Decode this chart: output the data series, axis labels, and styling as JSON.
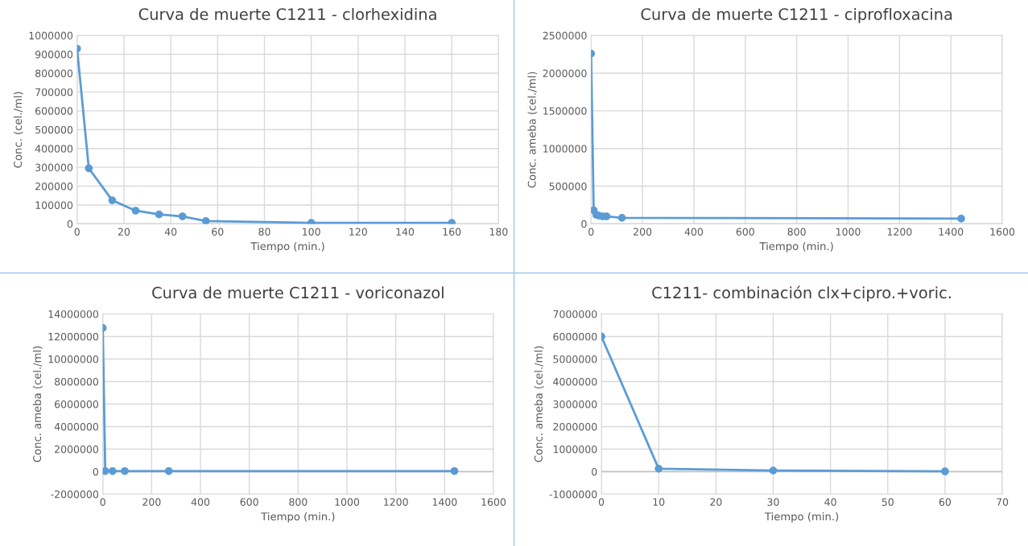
{
  "chart_data": [
    {
      "type": "line",
      "title": "Curva de muerte C1211 - clorhexidina",
      "xlabel": "Tiempo (min.)",
      "ylabel": "Conc. (cel./ml)",
      "marker": "circle",
      "line_style": "solid",
      "grid": true,
      "series": [
        {
          "color": "#5b9bd5",
          "x": [
            0,
            5,
            15,
            25,
            35,
            45,
            55,
            100,
            160
          ],
          "values": [
            930000,
            295000,
            125000,
            70000,
            50000,
            40000,
            15000,
            5000,
            5000
          ]
        }
      ],
      "xlim": [
        0,
        180
      ],
      "xticks": [
        0,
        20,
        40,
        60,
        80,
        100,
        120,
        140,
        160,
        180
      ],
      "ylim": [
        0,
        1000000
      ],
      "yticks": [
        0,
        100000,
        200000,
        300000,
        400000,
        500000,
        600000,
        700000,
        800000,
        900000,
        1000000
      ]
    },
    {
      "type": "line",
      "title": "Curva de muerte C1211 - ciprofloxacina",
      "xlabel": "Tiempo (min.)",
      "ylabel": "Conc. ameba (cel./ml)",
      "marker": "circle",
      "line_style": "solid",
      "grid": true,
      "series": [
        {
          "color": "#5b9bd5",
          "x": [
            0,
            10,
            20,
            30,
            45,
            60,
            120,
            1440
          ],
          "values": [
            2260000,
            180000,
            120000,
            110000,
            100000,
            100000,
            80000,
            70000
          ]
        }
      ],
      "xlim": [
        0,
        1600
      ],
      "xticks": [
        0,
        200,
        400,
        600,
        800,
        1000,
        1200,
        1400,
        1600
      ],
      "ylim": [
        0,
        2500000
      ],
      "yticks": [
        0,
        500000,
        1000000,
        1500000,
        2000000,
        2500000
      ]
    },
    {
      "type": "line",
      "title": "Curva de muerte C1211 - voriconazol",
      "xlabel": "Tiempo (min.)",
      "ylabel": "Conc. ameba (cel./ml)",
      "marker": "circle",
      "line_style": "solid",
      "grid": true,
      "series": [
        {
          "color": "#5b9bd5",
          "x": [
            0,
            10,
            40,
            90,
            270,
            1440
          ],
          "values": [
            12750000,
            50000,
            50000,
            50000,
            50000,
            50000
          ]
        }
      ],
      "xlim": [
        0,
        1600
      ],
      "xticks": [
        0,
        200,
        400,
        600,
        800,
        1000,
        1200,
        1400,
        1600
      ],
      "ylim": [
        -2000000,
        14000000
      ],
      "yticks": [
        {
          "value": -2000000,
          "label": "-2000000"
        },
        0,
        2000000,
        4000000,
        6000000,
        8000000,
        10000000,
        12000000,
        14000000
      ]
    },
    {
      "type": "line",
      "title": "C1211- combinación clx+cipro.+voric.",
      "xlabel": "Tiempo (min.)",
      "ylabel": "Conc. ameba (cel./ml)",
      "marker": "circle",
      "line_style": "solid",
      "grid": true,
      "series": [
        {
          "color": "#5b9bd5",
          "x": [
            0,
            10,
            30,
            60
          ],
          "values": [
            6000000,
            130000,
            50000,
            10000
          ]
        }
      ],
      "xlim": [
        0,
        70
      ],
      "xticks": [
        0,
        10,
        20,
        30,
        40,
        50,
        60,
        70
      ],
      "ylim": [
        -1000000,
        7000000
      ],
      "yticks": [
        {
          "value": -1000000,
          "label": "-1000000"
        },
        0,
        1000000,
        2000000,
        3000000,
        4000000,
        5000000,
        6000000,
        7000000
      ]
    }
  ]
}
